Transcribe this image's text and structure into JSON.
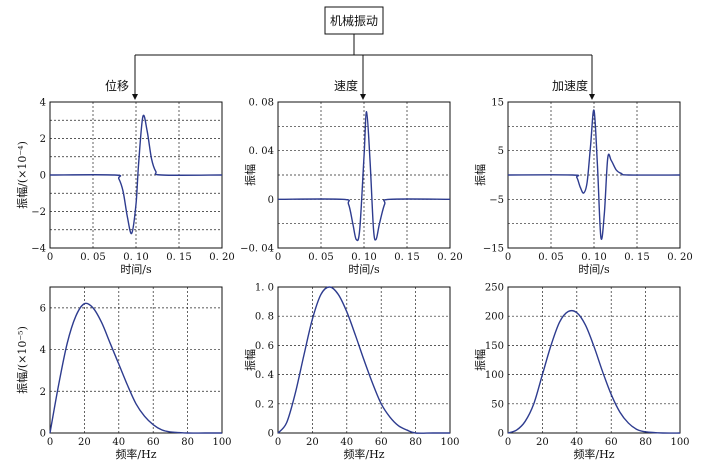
{
  "root": {
    "title": "机械振动"
  },
  "panel_titles": [
    "位移",
    "速度",
    "加速度"
  ],
  "chart_data": [
    {
      "type": "line",
      "title": "位移",
      "xlabel": "时间/s",
      "ylabel": "振幅/(×10⁻⁴)",
      "xlim": [
        0,
        0.2
      ],
      "ylim": [
        -4,
        4
      ],
      "xticks": [
        0,
        0.05,
        0.1,
        0.15,
        0.2
      ],
      "xtick_labels": [
        "0",
        "0. 05",
        "0. 10",
        "0. 15",
        "0. 20"
      ],
      "yticks": [
        -4,
        -2,
        0,
        2,
        4
      ],
      "ytick_labels": [
        "−4",
        "−2",
        "0",
        "2",
        "4"
      ],
      "ygrid": [
        -4,
        -3,
        -2,
        -1,
        0,
        1,
        2,
        3,
        4
      ],
      "grid": true,
      "series": [
        {
          "x": [
            0,
            0.075,
            0.08,
            0.085,
            0.09,
            0.095,
            0.1,
            0.103,
            0.108,
            0.113,
            0.118,
            0.123,
            0.13,
            0.2
          ],
          "y": [
            0,
            0,
            -0.2,
            -0.9,
            -2.3,
            -3.2,
            -1.6,
            0.6,
            3.2,
            2.4,
            0.9,
            0.2,
            0,
            0
          ]
        }
      ]
    },
    {
      "type": "line",
      "title": "速度",
      "xlabel": "时间/s",
      "ylabel": "振幅",
      "xlim": [
        0,
        0.2
      ],
      "ylim": [
        -0.04,
        0.08
      ],
      "xticks": [
        0,
        0.05,
        0.1,
        0.15,
        0.2
      ],
      "xtick_labels": [
        "0",
        "0. 05",
        "0. 10",
        "0. 15",
        "0. 20"
      ],
      "yticks": [
        -0.04,
        0,
        0.04,
        0.08
      ],
      "ytick_labels": [
        "−0. 04",
        "0",
        "0. 04",
        "0. 08"
      ],
      "ygrid": [
        -0.04,
        -0.02,
        0,
        0.02,
        0.04,
        0.06,
        0.08
      ],
      "grid": true,
      "series": [
        {
          "x": [
            0,
            0.075,
            0.082,
            0.087,
            0.091,
            0.095,
            0.1,
            0.103,
            0.107,
            0.111,
            0.114,
            0.118,
            0.124,
            0.13,
            0.2
          ],
          "y": [
            0,
            0,
            -0.004,
            -0.02,
            -0.033,
            -0.025,
            0.035,
            0.072,
            0.032,
            -0.024,
            -0.033,
            -0.02,
            -0.004,
            0,
            0
          ]
        }
      ]
    },
    {
      "type": "line",
      "title": "加速度",
      "xlabel": "时间/s",
      "ylabel": "振幅",
      "xlim": [
        0,
        0.2
      ],
      "ylim": [
        -15,
        15
      ],
      "xticks": [
        0,
        0.05,
        0.1,
        0.15,
        0.2
      ],
      "xtick_labels": [
        "0",
        "0. 05",
        "0. 10",
        "0. 15",
        "0. 20"
      ],
      "yticks": [
        -15,
        -5,
        5,
        15
      ],
      "ytick_labels": [
        "−15",
        "−5",
        "5",
        "15"
      ],
      "ygrid": [
        -15,
        -10,
        -5,
        0,
        5,
        10,
        15
      ],
      "grid": true,
      "series": [
        {
          "x": [
            0,
            0.075,
            0.08,
            0.084,
            0.088,
            0.092,
            0.096,
            0.1,
            0.104,
            0.108,
            0.112,
            0.116,
            0.12,
            0.126,
            0.132,
            0.14,
            0.2
          ],
          "y": [
            0,
            0,
            -0.5,
            -2.5,
            -3.7,
            -1.5,
            6,
            13.3,
            2,
            -12.8,
            -8,
            3.5,
            3,
            1,
            0.3,
            0,
            0
          ]
        }
      ]
    },
    {
      "type": "line",
      "xlabel": "频率/Hz",
      "ylabel": "振幅/(×10⁻⁵)",
      "xlim": [
        0,
        100
      ],
      "ylim": [
        0,
        7
      ],
      "xticks": [
        0,
        20,
        40,
        60,
        80,
        100
      ],
      "xtick_labels": [
        "0",
        "20",
        "40",
        "60",
        "80",
        "100"
      ],
      "yticks": [
        0,
        2,
        4,
        6
      ],
      "ytick_labels": [
        "0",
        "2",
        "4",
        "6"
      ],
      "ygrid": [
        2,
        4,
        6
      ],
      "grid": true,
      "series": [
        {
          "x": [
            0,
            5,
            10,
            15,
            20,
            25,
            30,
            35,
            40,
            45,
            50,
            55,
            60,
            65,
            70,
            75,
            80,
            90,
            100
          ],
          "y": [
            0,
            2.3,
            4.3,
            5.6,
            6.2,
            6.0,
            5.3,
            4.3,
            3.3,
            2.3,
            1.4,
            0.8,
            0.4,
            0.15,
            0.05,
            0.02,
            0,
            0,
            0
          ]
        }
      ]
    },
    {
      "type": "line",
      "xlabel": "频率/Hz",
      "ylabel": "振幅",
      "xlim": [
        0,
        100
      ],
      "ylim": [
        0,
        1.0
      ],
      "xticks": [
        0,
        20,
        40,
        60,
        80,
        100
      ],
      "xtick_labels": [
        "0",
        "20",
        "40",
        "60",
        "80",
        "100"
      ],
      "yticks": [
        0,
        0.2,
        0.4,
        0.6,
        0.8,
        1.0
      ],
      "ytick_labels": [
        "0",
        "0. 2",
        "0. 4",
        "0. 6",
        "0. 8",
        "1. 0"
      ],
      "ygrid": [
        0.2,
        0.4,
        0.6,
        0.8,
        1.0
      ],
      "grid": true,
      "series": [
        {
          "x": [
            0,
            5,
            10,
            15,
            20,
            25,
            30,
            35,
            40,
            45,
            50,
            55,
            60,
            65,
            70,
            75,
            80,
            90,
            100
          ],
          "y": [
            0,
            0.07,
            0.27,
            0.53,
            0.78,
            0.95,
            1.0,
            0.95,
            0.83,
            0.67,
            0.5,
            0.34,
            0.2,
            0.11,
            0.05,
            0.02,
            0,
            0,
            0
          ]
        }
      ]
    },
    {
      "type": "line",
      "xlabel": "频率/Hz",
      "ylabel": "振幅",
      "xlim": [
        0,
        100
      ],
      "ylim": [
        0,
        250
      ],
      "xticks": [
        0,
        20,
        40,
        60,
        80,
        100
      ],
      "xtick_labels": [
        "0",
        "20",
        "40",
        "60",
        "80",
        "100"
      ],
      "yticks": [
        0,
        50,
        100,
        150,
        200,
        250
      ],
      "ytick_labels": [
        "0",
        "50",
        "100",
        "150",
        "200",
        "250"
      ],
      "ygrid": [
        50,
        100,
        150,
        200,
        250
      ],
      "grid": true,
      "series": [
        {
          "x": [
            0,
            5,
            10,
            15,
            20,
            25,
            30,
            35,
            40,
            45,
            50,
            55,
            60,
            65,
            70,
            75,
            80,
            90,
            100
          ],
          "y": [
            0,
            5,
            20,
            50,
            100,
            150,
            190,
            208,
            206,
            185,
            148,
            105,
            66,
            36,
            17,
            6,
            2,
            0,
            0
          ]
        }
      ]
    }
  ]
}
